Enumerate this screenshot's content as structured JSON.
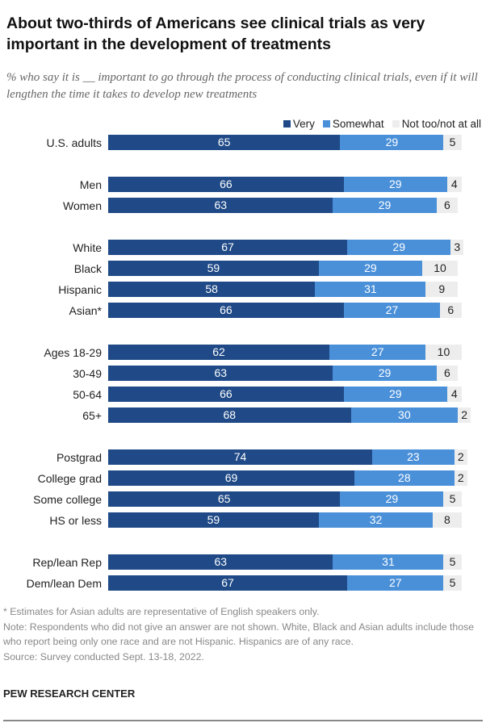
{
  "chart_data": {
    "type": "bar",
    "orientation": "horizontal",
    "stacked": true,
    "title": "About two-thirds of Americans see clinical trials as very important in the development of treatments",
    "subtitle": "% who say it is __ important to go through the process of conducting clinical trials, even if it will lengthen the time it takes to develop new treatments",
    "legend_placement": "top-right",
    "categories": [
      "U.S. adults",
      "Men",
      "Women",
      "White",
      "Black",
      "Hispanic",
      "Asian*",
      "Ages 18-29",
      "30-49",
      "50-64",
      "65+",
      "Postgrad",
      "College grad",
      "Some college",
      "HS or less",
      "Rep/lean Rep",
      "Dem/lean Dem"
    ],
    "groups": [
      [
        0
      ],
      [
        1,
        2
      ],
      [
        3,
        4,
        5,
        6
      ],
      [
        7,
        8,
        9,
        10
      ],
      [
        11,
        12,
        13,
        14
      ],
      [
        15,
        16
      ]
    ],
    "series": [
      {
        "name": "Very",
        "color": "#1f4a87",
        "values": [
          65,
          66,
          63,
          67,
          59,
          58,
          66,
          62,
          63,
          66,
          68,
          74,
          69,
          65,
          59,
          63,
          67
        ]
      },
      {
        "name": "Somewhat",
        "color": "#4a90d9",
        "values": [
          29,
          29,
          29,
          29,
          29,
          31,
          27,
          27,
          29,
          29,
          30,
          23,
          28,
          29,
          32,
          31,
          27
        ]
      },
      {
        "name": "Not too/not at all",
        "color": "#ededed",
        "values": [
          5,
          4,
          6,
          3,
          10,
          9,
          6,
          10,
          6,
          4,
          2,
          2,
          2,
          5,
          8,
          5,
          5
        ]
      }
    ]
  },
  "notes": {
    "asterisk": "* Estimates for Asian adults are representative of English speakers only.",
    "note": "Note: Respondents who did not give an answer are not shown. White, Black and Asian adults include those who report being only one race and are not Hispanic. Hispanics are of any race.",
    "source": "Source: Survey conducted Sept. 13-18, 2022."
  },
  "brand": "PEW RESEARCH CENTER"
}
